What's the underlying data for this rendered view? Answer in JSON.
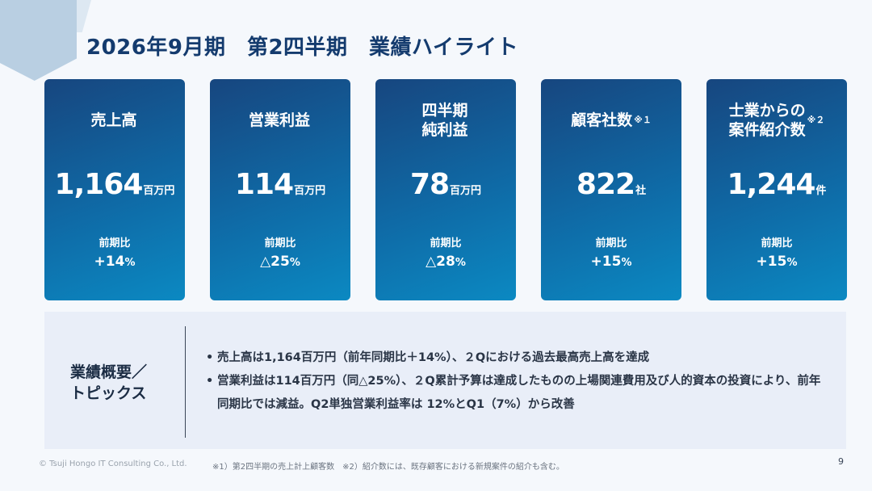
{
  "header": {
    "title": "2026年9月期　第2四半期　業績ハイライト"
  },
  "cards": [
    {
      "label": "売上高",
      "note": "",
      "value": "1,164",
      "unit": "百万円",
      "comparison_label": "前期比",
      "comparison_value": "+14",
      "comparison_unit": "%"
    },
    {
      "label": "営業利益",
      "note": "",
      "value": "114",
      "unit": "百万円",
      "comparison_label": "前期比",
      "comparison_value": "△25",
      "comparison_unit": "%"
    },
    {
      "label": "四半期\n純利益",
      "note": "",
      "value": "78",
      "unit": "百万円",
      "comparison_label": "前期比",
      "comparison_value": "△28",
      "comparison_unit": "%"
    },
    {
      "label": "顧客社数",
      "note": "※１",
      "value": "822",
      "unit": "社",
      "comparison_label": "前期比",
      "comparison_value": "+15",
      "comparison_unit": "%"
    },
    {
      "label": "士業からの\n案件紹介数",
      "note": "※２",
      "value": "1,244",
      "unit": "件",
      "comparison_label": "前期比",
      "comparison_value": "+15",
      "comparison_unit": "%"
    }
  ],
  "summary": {
    "heading": "業績概要／\nトピックス",
    "bullets": [
      "売上高は1,164百万円（前年同期比＋14%）、２Qにおける過去最高売上高を達成",
      "営業利益は114百万円（同△25%）、２Q累計予算は達成したものの上場関連費用及び人的資本の投資により、前年同期比では減益。Q2単独営業利益率は 12%とQ1（7%）から改善"
    ]
  },
  "footer": {
    "copyright": "© Tsuji Hongo IT Consulting Co., Ltd.",
    "footnote": "※1）第2四半期の売上計上顧客数　※2）紹介数には、既存顧客における新規案件の紹介も含む。",
    "page_number": "9"
  },
  "colors": {
    "title": "#143b6e",
    "card_gradient_start": "#17467f",
    "card_gradient_end": "#0b89c2",
    "summary_background": "#e9eef8",
    "page_background": "#f5f8fc"
  }
}
